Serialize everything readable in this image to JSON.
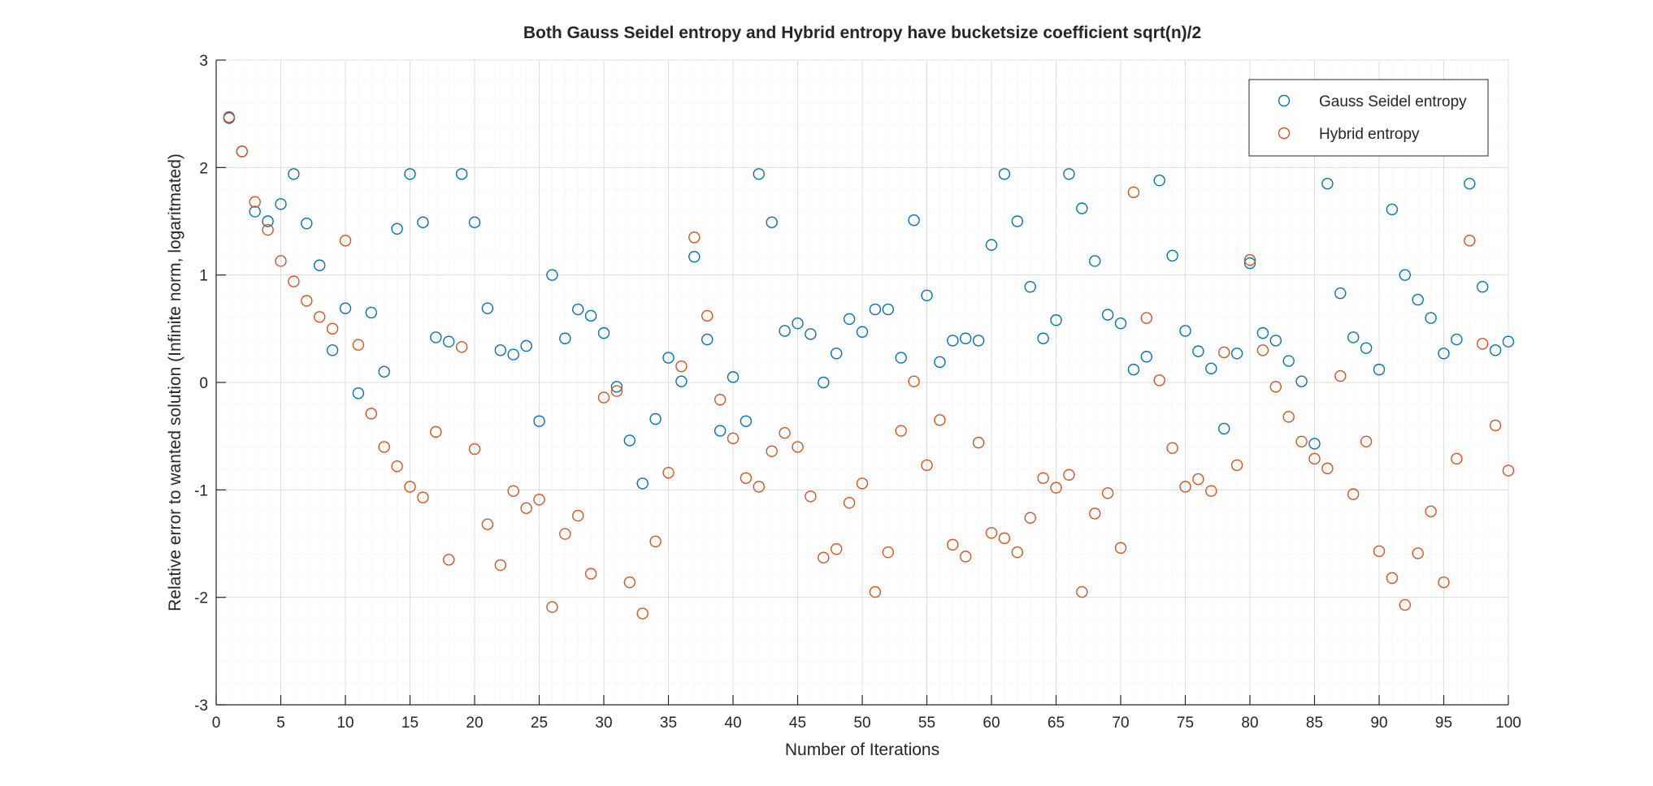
{
  "chart_data": {
    "type": "scatter",
    "title": "Both Gauss Seidel entropy and Hybrid entropy have bucketsize coefficient sqrt(n)/2",
    "xlabel": "Number of Iterations",
    "ylabel": "Relative error to wanted solution (Infinite norm, logaritmated)",
    "xlim": [
      0,
      100
    ],
    "ylim": [
      -3,
      3
    ],
    "xticks": [
      0,
      5,
      10,
      15,
      20,
      25,
      30,
      35,
      40,
      45,
      50,
      55,
      60,
      65,
      70,
      75,
      80,
      85,
      90,
      95,
      100
    ],
    "xtick_labels": [
      "0",
      "5",
      "10",
      "15",
      "20",
      "25",
      "30",
      "35",
      "40",
      "45",
      "50",
      "55",
      "60",
      "65",
      "70",
      "75",
      "80",
      "85",
      "90",
      "95",
      "100"
    ],
    "yticks": [
      -3,
      -2,
      -1,
      0,
      1,
      2,
      3
    ],
    "ytick_labels": [
      "-3",
      "-2",
      "-1",
      "0",
      "1",
      "2",
      "3"
    ],
    "grid": true,
    "minor_grid": true,
    "legend_position": "top-right",
    "x": [
      1,
      2,
      3,
      4,
      5,
      6,
      7,
      8,
      9,
      10,
      11,
      12,
      13,
      14,
      15,
      16,
      17,
      18,
      19,
      20,
      21,
      22,
      23,
      24,
      25,
      26,
      27,
      28,
      29,
      30,
      31,
      32,
      33,
      34,
      35,
      36,
      37,
      38,
      39,
      40,
      41,
      42,
      43,
      44,
      45,
      46,
      47,
      48,
      49,
      50,
      51,
      52,
      53,
      54,
      55,
      56,
      57,
      58,
      59,
      60,
      61,
      62,
      63,
      64,
      65,
      66,
      67,
      68,
      69,
      70,
      71,
      72,
      73,
      74,
      75,
      76,
      77,
      78,
      79,
      80,
      81,
      82,
      83,
      84,
      85,
      86,
      87,
      88,
      89,
      90,
      91,
      92,
      93,
      94,
      95,
      96,
      97,
      98,
      99,
      100
    ],
    "series": [
      {
        "name": "Gauss Seidel entropy",
        "color": "#0072BD",
        "marker": "circle-open",
        "values": [
          2.46,
          2.15,
          1.59,
          1.5,
          1.66,
          1.94,
          1.48,
          1.09,
          0.3,
          0.69,
          -0.1,
          0.65,
          0.1,
          1.43,
          1.94,
          1.49,
          0.42,
          0.38,
          1.94,
          1.49,
          0.69,
          0.3,
          0.26,
          0.34,
          -0.36,
          1.0,
          0.41,
          0.68,
          0.62,
          0.46,
          -0.04,
          -0.54,
          -0.94,
          -0.34,
          0.23,
          0.01,
          1.17,
          0.4,
          -0.45,
          0.05,
          -0.36,
          1.94,
          1.49,
          0.48,
          0.55,
          0.45,
          0.0,
          0.27,
          0.59,
          0.47,
          0.68,
          0.68,
          0.23,
          1.51,
          0.81,
          0.19,
          0.39,
          0.41,
          0.39,
          1.28,
          1.94,
          1.5,
          0.89,
          0.41,
          0.58,
          1.94,
          1.62,
          1.13,
          0.63,
          0.55,
          0.12,
          0.24,
          1.88,
          1.18,
          0.48,
          0.29,
          0.13,
          -0.43,
          0.27,
          1.11,
          0.46,
          0.39,
          0.2,
          0.01,
          -0.57,
          1.85,
          0.83,
          0.42,
          0.32,
          0.12,
          1.61,
          1.0,
          0.77,
          0.6,
          0.27,
          0.4,
          1.85,
          0.89,
          0.3,
          0.38
        ]
      },
      {
        "name": "Hybrid entropy",
        "color": "#D95319",
        "marker": "circle-open",
        "values": [
          2.47,
          2.15,
          1.68,
          1.42,
          1.13,
          0.94,
          0.76,
          0.61,
          0.5,
          1.32,
          0.35,
          -0.29,
          -0.6,
          -0.78,
          -0.97,
          -1.07,
          -0.46,
          -1.65,
          0.33,
          -0.62,
          -1.32,
          -1.7,
          -1.01,
          -1.17,
          -1.09,
          -2.09,
          -1.41,
          -1.24,
          -1.78,
          -0.14,
          -0.08,
          -1.86,
          -2.15,
          -1.48,
          -0.84,
          0.15,
          1.35,
          0.62,
          -0.16,
          -0.52,
          -0.89,
          -0.97,
          -0.64,
          -0.47,
          -0.6,
          -1.06,
          -1.63,
          -1.55,
          -1.12,
          -0.94,
          -1.95,
          -1.58,
          -0.45,
          0.01,
          -0.77,
          -0.35,
          -1.51,
          -1.62,
          -0.56,
          -1.4,
          -1.45,
          -1.58,
          -1.26,
          -0.89,
          -0.98,
          -0.86,
          -1.95,
          -1.22,
          -1.03,
          -1.54,
          1.77,
          0.6,
          0.02,
          -0.61,
          -0.97,
          -0.9,
          -1.01,
          0.28,
          -0.77,
          1.14,
          0.3,
          -0.04,
          -0.32,
          -0.55,
          -0.71,
          -0.8,
          0.06,
          -1.04,
          -0.55,
          -1.57,
          -1.82,
          -2.07,
          -1.59,
          -1.2,
          -1.86,
          -0.71,
          1.32,
          0.36,
          -0.4,
          -0.82
        ]
      }
    ]
  }
}
